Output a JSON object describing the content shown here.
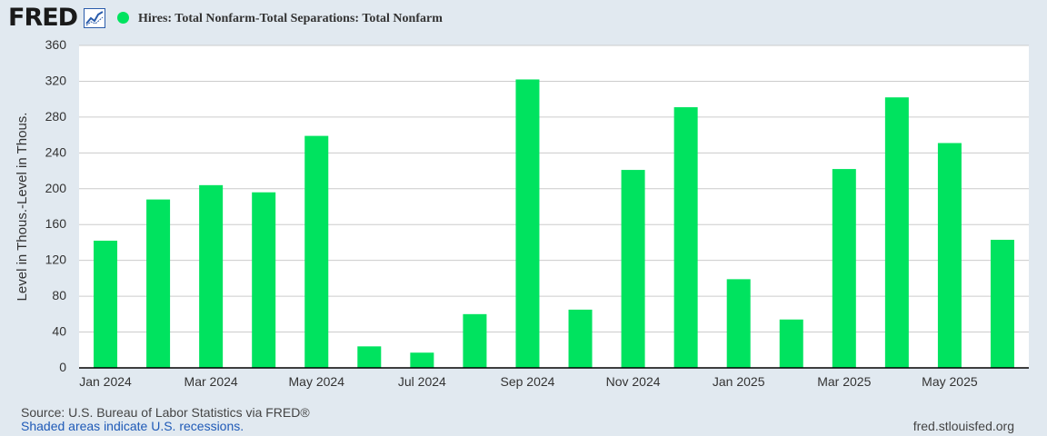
{
  "brand": {
    "logo_text": "FRED",
    "logo_icon": "fred-line-chart-icon",
    "series_color": "#00e35f"
  },
  "legend": {
    "label": "Hires: Total Nonfarm-Total Separations: Total Nonfarm"
  },
  "footer": {
    "source": "Source: U.S. Bureau of Labor Statistics via FRED®",
    "shaded": "Shaded areas indicate U.S. recessions.",
    "site": "fred.stlouisfed.org"
  },
  "chart_data": {
    "type": "bar",
    "ylabel": "Level in Thous.-Level in Thous.",
    "xlabel": "",
    "ylim": [
      0,
      360
    ],
    "yticks": [
      0,
      40,
      80,
      120,
      160,
      200,
      240,
      280,
      320,
      360
    ],
    "grid": true,
    "categories": [
      "Jan 2024",
      "Feb 2024",
      "Mar 2024",
      "Apr 2024",
      "May 2024",
      "Jun 2024",
      "Jul 2024",
      "Aug 2024",
      "Sep 2024",
      "Oct 2024",
      "Nov 2024",
      "Dec 2024",
      "Jan 2025",
      "Feb 2025",
      "Mar 2025",
      "Apr 2025",
      "May 2025",
      "Jun 2025"
    ],
    "xtick_labels": [
      "Jan 2024",
      "Mar 2024",
      "May 2024",
      "Jul 2024",
      "Sep 2024",
      "Nov 2024",
      "Jan 2025",
      "Mar 2025",
      "May 2025"
    ],
    "series": [
      {
        "name": "Hires: Total Nonfarm-Total Separations: Total Nonfarm",
        "values": [
          142,
          188,
          204,
          196,
          259,
          24,
          17,
          60,
          322,
          65,
          221,
          291,
          99,
          54,
          222,
          302,
          251,
          143
        ]
      }
    ]
  }
}
